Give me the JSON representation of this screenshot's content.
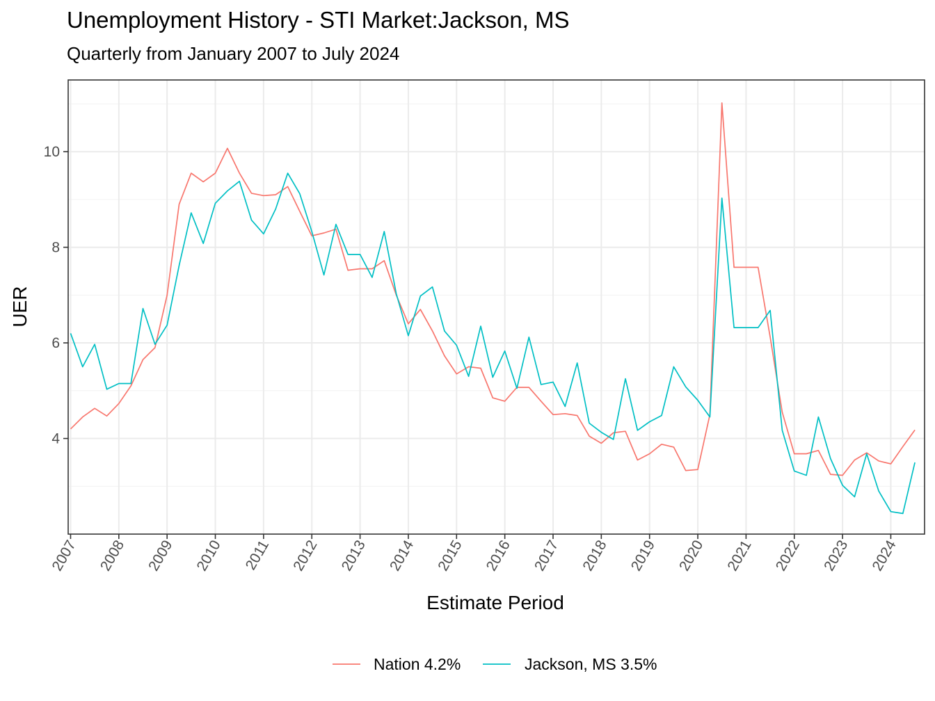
{
  "chart_data": {
    "type": "line",
    "title": "Unemployment History - STI Market:Jackson, MS",
    "subtitle": "Quarterly from January 2007 to July 2024",
    "xlabel": "Estimate Period",
    "ylabel": "UER",
    "xlim": [
      2006.95,
      2024.7
    ],
    "ylim": [
      2.0,
      11.5
    ],
    "x_ticks": [
      2007,
      2008,
      2009,
      2010,
      2011,
      2012,
      2013,
      2014,
      2015,
      2016,
      2017,
      2018,
      2019,
      2020,
      2021,
      2022,
      2023,
      2024
    ],
    "x_tick_labels": [
      "2007",
      "2008",
      "2009",
      "2010",
      "2011",
      "2012",
      "2013",
      "2014",
      "2015",
      "2016",
      "2017",
      "2018",
      "2019",
      "2020",
      "2021",
      "2022",
      "2023",
      "2024"
    ],
    "y_ticks": [
      4,
      6,
      8,
      10
    ],
    "y_tick_labels": [
      "4",
      "6",
      "8",
      "10"
    ],
    "grid": true,
    "legend_position": "bottom",
    "x": [
      2007.0,
      2007.25,
      2007.5,
      2007.75,
      2008.0,
      2008.25,
      2008.5,
      2008.75,
      2009.0,
      2009.25,
      2009.5,
      2009.75,
      2010.0,
      2010.25,
      2010.5,
      2010.75,
      2011.0,
      2011.25,
      2011.5,
      2011.75,
      2012.0,
      2012.25,
      2012.5,
      2012.75,
      2013.0,
      2013.25,
      2013.5,
      2013.75,
      2014.0,
      2014.25,
      2014.5,
      2014.75,
      2015.0,
      2015.25,
      2015.5,
      2015.75,
      2016.0,
      2016.25,
      2016.5,
      2016.75,
      2017.0,
      2017.25,
      2017.5,
      2017.75,
      2018.0,
      2018.25,
      2018.5,
      2018.75,
      2019.0,
      2019.25,
      2019.5,
      2019.75,
      2020.0,
      2020.25,
      2020.5,
      2020.75,
      2021.0,
      2021.25,
      2021.5,
      2021.75,
      2022.0,
      2022.25,
      2022.5,
      2022.75,
      2023.0,
      2023.25,
      2023.5,
      2023.75,
      2024.0,
      2024.25,
      2024.5
    ],
    "series": [
      {
        "name": "Nation 4.2%",
        "color": "#F8766D",
        "values": [
          4.2,
          4.45,
          4.63,
          4.47,
          4.73,
          5.1,
          5.65,
          5.9,
          7.0,
          8.9,
          9.55,
          9.37,
          9.55,
          10.07,
          9.55,
          9.13,
          9.08,
          9.1,
          9.27,
          8.75,
          8.24,
          8.3,
          8.38,
          7.52,
          7.55,
          7.55,
          7.72,
          7.0,
          6.4,
          6.7,
          6.25,
          5.73,
          5.35,
          5.5,
          5.47,
          4.85,
          4.78,
          5.07,
          5.07,
          4.78,
          4.5,
          4.52,
          4.48,
          4.05,
          3.9,
          4.12,
          4.15,
          3.55,
          3.68,
          3.88,
          3.82,
          3.33,
          3.35,
          4.5,
          11.02,
          7.58,
          7.58,
          7.58,
          6.12,
          4.55,
          3.68,
          3.68,
          3.75,
          3.25,
          3.23,
          3.55,
          3.7,
          3.53,
          3.47,
          3.83,
          4.18
        ]
      },
      {
        "name": "Jackson, MS 3.5%",
        "color": "#00BFC4",
        "values": [
          6.2,
          5.5,
          5.97,
          5.03,
          5.15,
          5.15,
          6.72,
          5.97,
          6.37,
          7.62,
          8.72,
          8.08,
          8.92,
          9.18,
          9.38,
          8.57,
          8.28,
          8.8,
          9.55,
          9.12,
          8.33,
          7.42,
          8.48,
          7.85,
          7.85,
          7.37,
          8.33,
          7.03,
          6.15,
          6.98,
          7.17,
          6.25,
          5.95,
          5.3,
          6.35,
          5.28,
          5.83,
          5.05,
          6.12,
          5.13,
          5.18,
          4.67,
          5.58,
          4.32,
          4.13,
          3.98,
          5.25,
          4.17,
          4.35,
          4.48,
          5.5,
          5.08,
          4.8,
          4.45,
          9.03,
          6.32,
          6.32,
          6.32,
          6.68,
          4.17,
          3.32,
          3.23,
          4.45,
          3.58,
          3.02,
          2.78,
          3.68,
          2.9,
          2.47,
          2.43,
          3.5
        ]
      }
    ]
  }
}
